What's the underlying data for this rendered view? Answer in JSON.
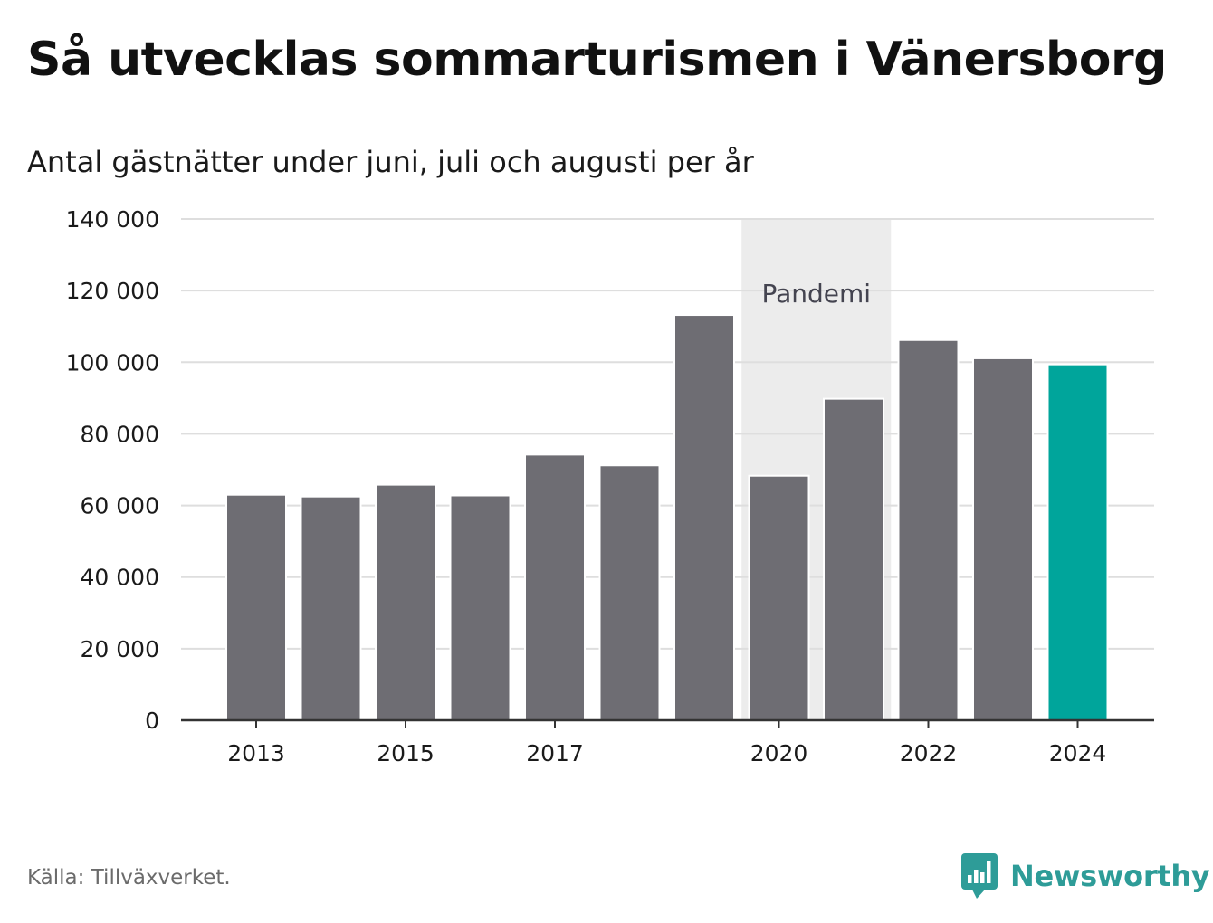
{
  "header": {
    "title": "Så utvecklas sommarturismen i Vänersborg",
    "subtitle": "Antal gästnätter under juni, juli och augusti per år"
  },
  "footer": {
    "source": "Källa: Tillväxverket.",
    "brand_name": "Newsworthy",
    "brand_icon": "newsworthy-logo-icon",
    "brand_color": "#2e9c98"
  },
  "chart_data": {
    "type": "bar",
    "categories": [
      "2013",
      "2014",
      "2015",
      "2016",
      "2017",
      "2018",
      "2019",
      "2020",
      "2021",
      "2022",
      "2023",
      "2024"
    ],
    "values": [
      63000,
      62500,
      65800,
      62800,
      74200,
      71200,
      113200,
      68300,
      89800,
      106200,
      101100,
      99400
    ],
    "x_tick_labels": [
      "2013",
      "2015",
      "2017",
      "2020",
      "2022",
      "2024"
    ],
    "y_tick_labels": [
      "0",
      "20 000",
      "40 000",
      "60 000",
      "80 000",
      "100 000",
      "120 000",
      "140 000"
    ],
    "y_ticks": [
      0,
      20000,
      40000,
      60000,
      80000,
      100000,
      120000,
      140000
    ],
    "ylim": [
      0,
      140000
    ],
    "title": "Så utvecklas sommarturismen i Vänersborg",
    "subtitle": "Antal gästnätter under juni, juli och augusti per år",
    "xlabel": "",
    "ylabel": "",
    "grid": true,
    "annotation": {
      "label": "Pandemi",
      "x_start": "2020",
      "x_end": "2021",
      "color": "#ececec"
    },
    "colors": {
      "bar": "#6e6d73",
      "highlight": "#00a59b",
      "highlight_category": "2024",
      "grid": "#dedede",
      "axis": "#333333"
    }
  }
}
